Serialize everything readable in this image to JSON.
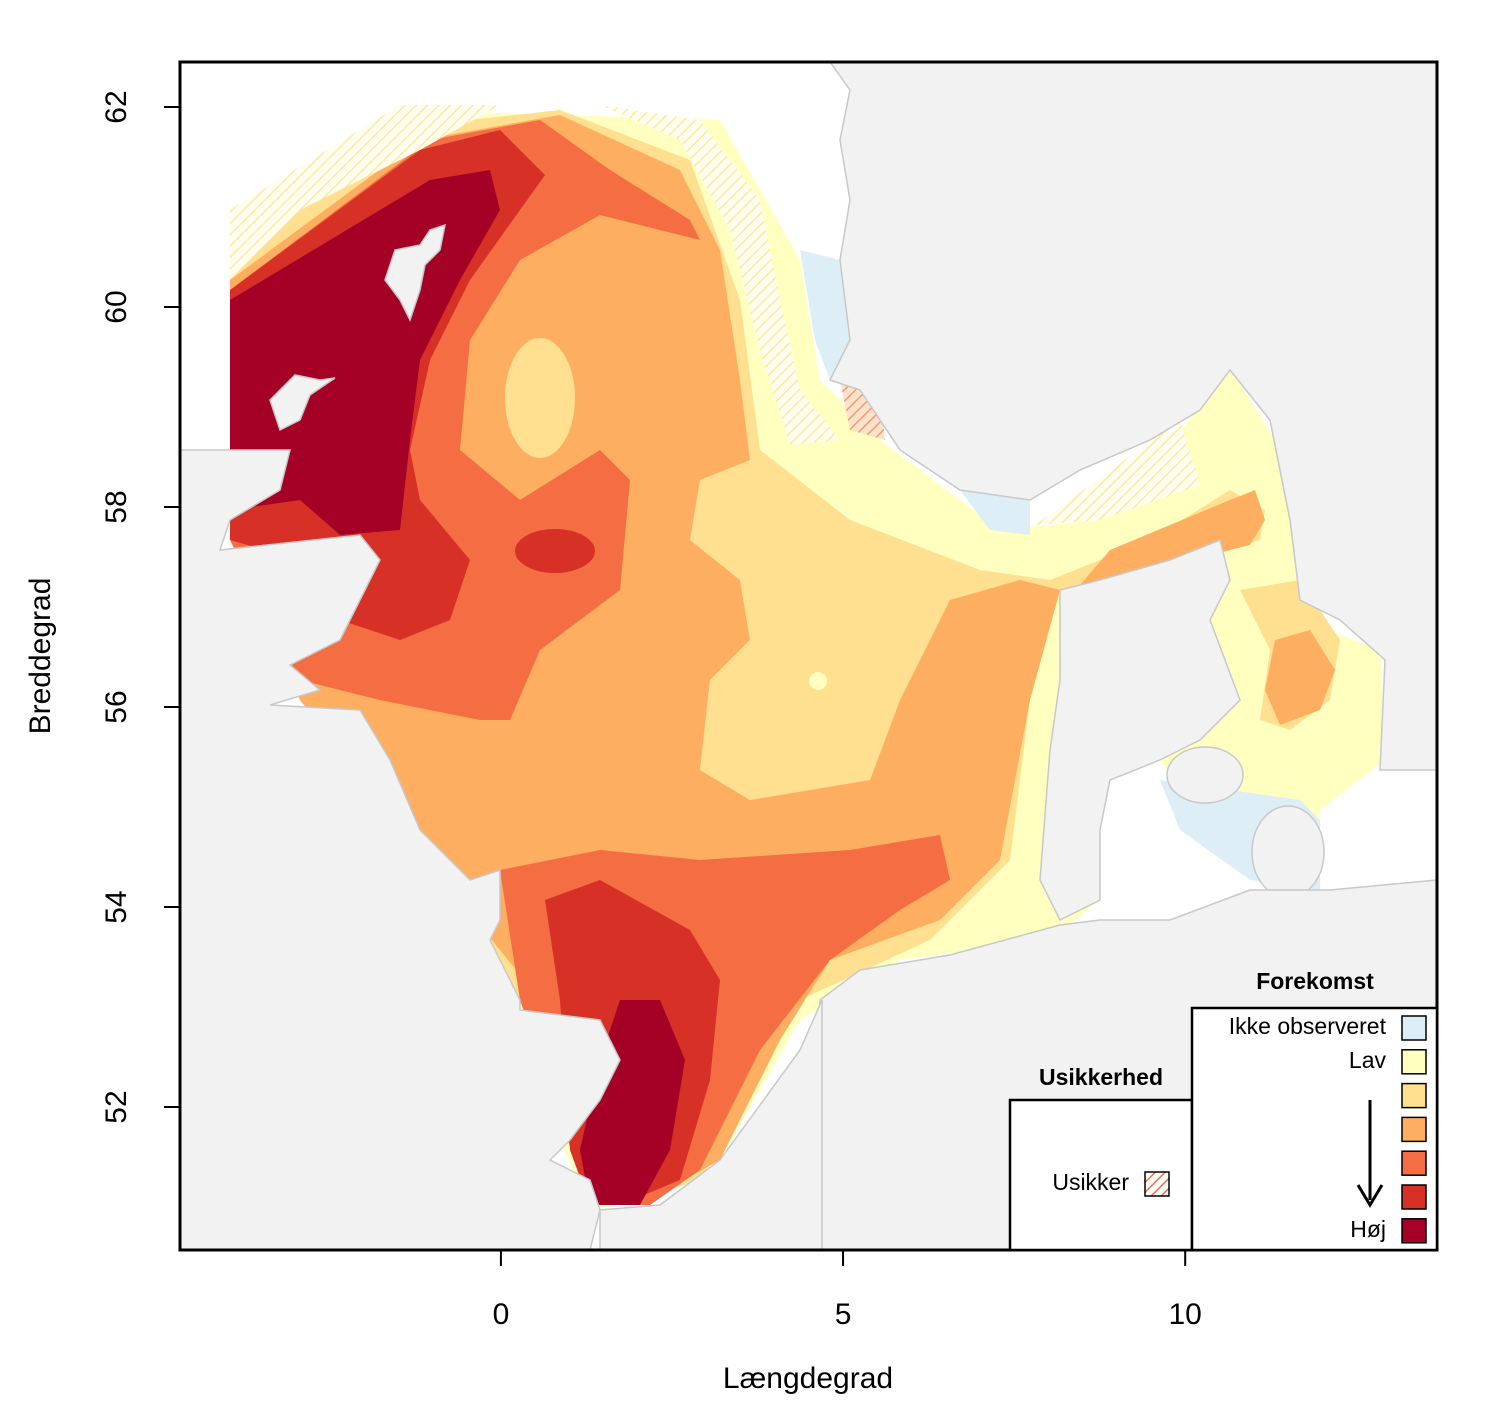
{
  "chart_data": {
    "type": "map",
    "xlabel": "Længdegrad",
    "ylabel": "Breddegrad",
    "xlim": [
      -4.69,
      13.68
    ],
    "ylim": [
      50.57,
      62.45
    ],
    "xticks": [
      0,
      5,
      10
    ],
    "yticks": [
      52,
      54,
      56,
      58,
      60,
      62
    ],
    "legend": {
      "title": "Forekomst",
      "categories": [
        "Ikke observeret",
        "Lav",
        null,
        null,
        null,
        null,
        "Høj"
      ],
      "colors": [
        "#deeef6",
        "#ffffbf",
        "#fee090",
        "#fdae61",
        "#f46d43",
        "#d73027",
        "#a50026"
      ]
    },
    "uncertainty_legend": {
      "title": "Usikkerhed",
      "label": "Usikker",
      "color": "#f46d43"
    }
  }
}
